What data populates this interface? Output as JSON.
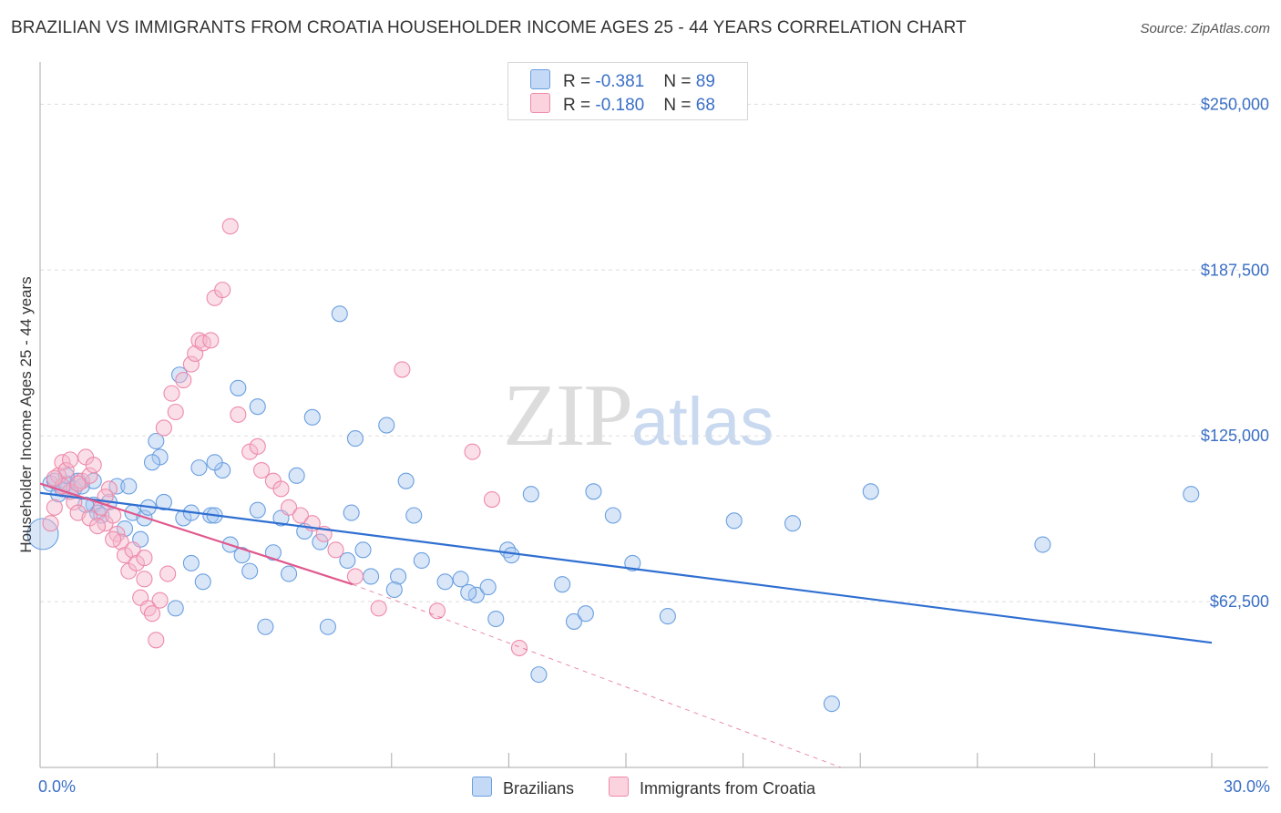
{
  "title": "BRAZILIAN VS IMMIGRANTS FROM CROATIA HOUSEHOLDER INCOME AGES 25 - 44 YEARS CORRELATION CHART",
  "source": "Source: ZipAtlas.com",
  "watermark": {
    "zip": "ZIP",
    "atlas": "atlas"
  },
  "legend": {
    "rows": [
      {
        "r_label": "R = ",
        "r_value": "-0.381",
        "n_label": "N = ",
        "n_value": "89",
        "color": "#a9c7f0"
      },
      {
        "r_label": "R = ",
        "r_value": "-0.180",
        "n_label": "N = ",
        "n_value": "68",
        "color": "#f5b8cb"
      }
    ]
  },
  "bottom_legend": [
    "Brazilians",
    "Immigrants from Croatia"
  ],
  "chart_data": {
    "type": "scatter",
    "ylabel": "Householder Income Ages 25 - 44 years",
    "xlim": [
      0,
      30
    ],
    "ylim": [
      0,
      262500
    ],
    "x_tick_labels": [
      "0.0%",
      "30.0%"
    ],
    "y_ticks": [
      62500,
      125000,
      187500,
      250000
    ],
    "y_tick_labels": [
      "$62,500",
      "$125,000",
      "$187,500",
      "$250,000"
    ],
    "grid": true,
    "colors": {
      "brazilians": "#6a9fe0",
      "brazilians_fill": "#a9c7f0",
      "croatia": "#ee8aaa",
      "croatia_fill": "#f5b8cb",
      "blue_line": "#2f6fd1",
      "pink_line": "#e0588c"
    },
    "series": [
      {
        "name": "Brazilians",
        "points": [
          [
            0.0,
            88000
          ],
          [
            0.2,
            107000
          ],
          [
            0.3,
            108000
          ],
          [
            0.4,
            103000
          ],
          [
            0.5,
            105000
          ],
          [
            0.6,
            107000
          ],
          [
            0.7,
            104000
          ],
          [
            0.8,
            105000
          ],
          [
            0.9,
            108000
          ],
          [
            1.0,
            106000
          ],
          [
            1.3,
            99000
          ],
          [
            1.4,
            96000
          ],
          [
            1.5,
            95000
          ],
          [
            1.7,
            100000
          ],
          [
            1.9,
            106000
          ],
          [
            2.1,
            90000
          ],
          [
            2.2,
            106000
          ],
          [
            2.3,
            96000
          ],
          [
            2.5,
            86000
          ],
          [
            2.6,
            94000
          ],
          [
            2.7,
            98000
          ],
          [
            2.9,
            123000
          ],
          [
            3.0,
            117000
          ],
          [
            3.1,
            100000
          ],
          [
            3.4,
            60000
          ],
          [
            3.5,
            148000
          ],
          [
            3.6,
            94000
          ],
          [
            3.8,
            77000
          ],
          [
            4.0,
            113000
          ],
          [
            4.1,
            70000
          ],
          [
            4.3,
            95000
          ],
          [
            4.4,
            95000
          ],
          [
            4.6,
            112000
          ],
          [
            4.8,
            84000
          ],
          [
            5.0,
            143000
          ],
          [
            5.1,
            80000
          ],
          [
            5.3,
            74000
          ],
          [
            5.5,
            97000
          ],
          [
            5.7,
            53000
          ],
          [
            5.9,
            81000
          ],
          [
            6.1,
            94000
          ],
          [
            6.3,
            73000
          ],
          [
            6.5,
            110000
          ],
          [
            6.7,
            89000
          ],
          [
            6.9,
            132000
          ],
          [
            7.1,
            85000
          ],
          [
            7.3,
            53000
          ],
          [
            7.6,
            171000
          ],
          [
            7.8,
            78000
          ],
          [
            8.0,
            124000
          ],
          [
            8.2,
            82000
          ],
          [
            8.4,
            72000
          ],
          [
            8.8,
            129000
          ],
          [
            9.1,
            72000
          ],
          [
            9.3,
            108000
          ],
          [
            9.5,
            95000
          ],
          [
            9.7,
            78000
          ],
          [
            10.3,
            70000
          ],
          [
            10.7,
            71000
          ],
          [
            11.1,
            65000
          ],
          [
            11.4,
            68000
          ],
          [
            11.6,
            56000
          ],
          [
            11.9,
            82000
          ],
          [
            12.5,
            103000
          ],
          [
            12.7,
            35000
          ],
          [
            13.3,
            69000
          ],
          [
            13.6,
            55000
          ],
          [
            14.1,
            104000
          ],
          [
            14.6,
            95000
          ],
          [
            15.1,
            77000
          ],
          [
            16.0,
            57000
          ],
          [
            17.7,
            93000
          ],
          [
            19.2,
            92000
          ],
          [
            21.2,
            104000
          ],
          [
            25.6,
            84000
          ],
          [
            29.4,
            103000
          ],
          [
            20.2,
            24000
          ],
          [
            5.5,
            136000
          ],
          [
            7.9,
            96000
          ],
          [
            10.9,
            66000
          ],
          [
            2.8,
            115000
          ],
          [
            3.8,
            96000
          ],
          [
            4.4,
            115000
          ],
          [
            1.1,
            99000
          ],
          [
            1.3,
            108000
          ],
          [
            0.6,
            110000
          ],
          [
            9.0,
            67000
          ],
          [
            12.0,
            80000
          ],
          [
            13.9,
            58000
          ]
        ]
      },
      {
        "name": "Immigrants from Croatia",
        "points": [
          [
            0.2,
            92000
          ],
          [
            0.3,
            98000
          ],
          [
            0.4,
            110000
          ],
          [
            0.5,
            115000
          ],
          [
            0.6,
            112000
          ],
          [
            0.7,
            104000
          ],
          [
            0.8,
            100000
          ],
          [
            0.9,
            96000
          ],
          [
            1.0,
            108000
          ],
          [
            1.1,
            117000
          ],
          [
            1.2,
            110000
          ],
          [
            1.3,
            114000
          ],
          [
            1.5,
            98000
          ],
          [
            1.6,
            92000
          ],
          [
            1.7,
            105000
          ],
          [
            1.8,
            95000
          ],
          [
            1.9,
            88000
          ],
          [
            2.0,
            85000
          ],
          [
            2.1,
            80000
          ],
          [
            2.2,
            74000
          ],
          [
            2.3,
            82000
          ],
          [
            2.4,
            77000
          ],
          [
            2.5,
            64000
          ],
          [
            2.6,
            71000
          ],
          [
            2.7,
            60000
          ],
          [
            2.8,
            58000
          ],
          [
            2.9,
            48000
          ],
          [
            3.0,
            63000
          ],
          [
            3.1,
            128000
          ],
          [
            3.3,
            141000
          ],
          [
            3.4,
            134000
          ],
          [
            3.6,
            146000
          ],
          [
            3.8,
            152000
          ],
          [
            3.9,
            156000
          ],
          [
            4.0,
            161000
          ],
          [
            4.1,
            160000
          ],
          [
            4.3,
            161000
          ],
          [
            4.4,
            177000
          ],
          [
            4.6,
            180000
          ],
          [
            4.8,
            204000
          ],
          [
            5.0,
            133000
          ],
          [
            5.3,
            119000
          ],
          [
            5.5,
            121000
          ],
          [
            5.6,
            112000
          ],
          [
            5.9,
            108000
          ],
          [
            6.1,
            105000
          ],
          [
            6.3,
            98000
          ],
          [
            6.6,
            95000
          ],
          [
            6.9,
            92000
          ],
          [
            7.2,
            88000
          ],
          [
            7.5,
            82000
          ],
          [
            8.0,
            72000
          ],
          [
            8.6,
            60000
          ],
          [
            9.2,
            150000
          ],
          [
            10.1,
            59000
          ],
          [
            11.0,
            119000
          ],
          [
            11.5,
            101000
          ],
          [
            12.2,
            45000
          ],
          [
            0.5,
            106000
          ],
          [
            0.7,
            116000
          ],
          [
            1.2,
            94000
          ],
          [
            1.4,
            91000
          ],
          [
            1.8,
            86000
          ],
          [
            2.6,
            79000
          ],
          [
            3.2,
            73000
          ],
          [
            0.9,
            107000
          ],
          [
            1.6,
            102000
          ],
          [
            0.3,
            109000
          ]
        ]
      }
    ],
    "trend_lines": [
      {
        "series": "Brazilians",
        "x": [
          0.0,
          30.0
        ],
        "y": [
          103500,
          47000
        ]
      },
      {
        "series": "Immigrants from Croatia",
        "x": [
          0.0,
          8.0
        ],
        "y": [
          107000,
          69000
        ]
      },
      {
        "series": "Immigrants from Croatia (extrapolated)",
        "x": [
          8.0,
          20.5
        ],
        "y": [
          69000,
          0
        ]
      }
    ]
  }
}
